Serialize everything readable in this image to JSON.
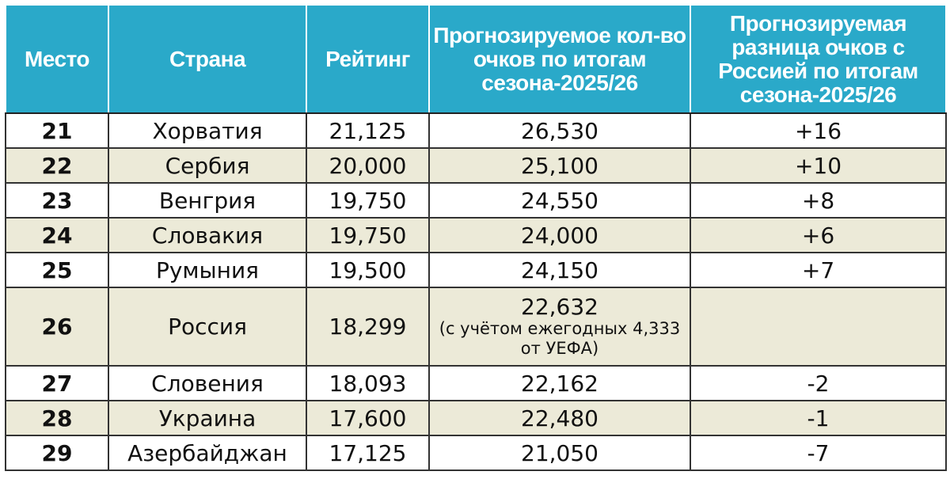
{
  "headers": {
    "place": "Место",
    "country": "Страна",
    "rating": "Рейтинг",
    "projected_points": "Прогнозируемое кол-во очков по итогам сезона-2025/26",
    "projected_diff": "Прогнозируемая разница очков с Россией по итогам сезона-2025/26"
  },
  "rows": [
    {
      "place": "21",
      "country": "Хорватия",
      "rating": "21,125",
      "projected": "26,530",
      "diff": "+16"
    },
    {
      "place": "22",
      "country": "Сербия",
      "rating": "20,000",
      "projected": "25,100",
      "diff": "+10"
    },
    {
      "place": "23",
      "country": "Венгрия",
      "rating": "19,750",
      "projected": "24,550",
      "diff": "+8"
    },
    {
      "place": "24",
      "country": "Словакия",
      "rating": "19,750",
      "projected": "24,000",
      "diff": "+6"
    },
    {
      "place": "25",
      "country": "Румыния",
      "rating": "19,500",
      "projected": "24,150",
      "diff": "+7"
    },
    {
      "place": "26",
      "country": "Россия",
      "rating": "18,299",
      "projected": "22,632",
      "projected_note": "(с учётом ежегодных 4,333 от УЕФА)",
      "diff": ""
    },
    {
      "place": "27",
      "country": "Словения",
      "rating": "18,093",
      "projected": "22,162",
      "diff": "-2"
    },
    {
      "place": "28",
      "country": "Украина",
      "rating": "17,600",
      "projected": "22,480",
      "diff": "-1"
    },
    {
      "place": "29",
      "country": "Азербайджан",
      "rating": "17,125",
      "projected": "21,050",
      "diff": "-7"
    }
  ],
  "colors": {
    "header_bg": "#2aa9c9",
    "header_text": "#ffffff",
    "alt_row_bg": "#ecead8",
    "grid": "#333333"
  }
}
